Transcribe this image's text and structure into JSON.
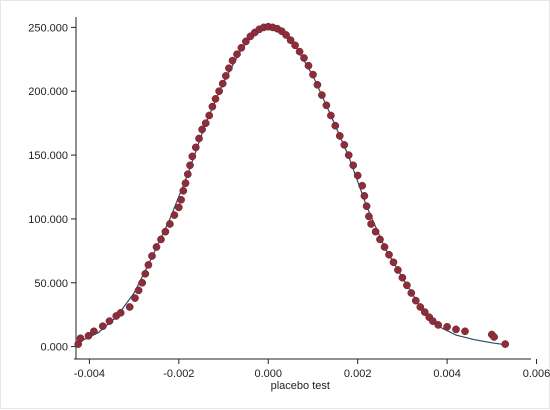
{
  "chart_data": {
    "type": "scatter",
    "title": "",
    "xlabel": "placebo test",
    "ylabel": "",
    "xlim": [
      -0.0043,
      0.0061
    ],
    "ylim": [
      -5000,
      255000
    ],
    "xticks": [
      -0.004,
      -0.002,
      0.0,
      0.002,
      0.004,
      0.006
    ],
    "xtick_labels": [
      "-0.004",
      "-0.002",
      "0.000",
      "0.002",
      "0.004",
      "0.006"
    ],
    "yticks": [
      0,
      50000,
      100000,
      150000,
      200000,
      250000
    ],
    "ytick_labels": [
      "0.000",
      "50.000",
      "100.000",
      "150.000",
      "200.000",
      "250.000"
    ],
    "grid": false,
    "legend": "none",
    "series": [
      {
        "kind": "points",
        "color": "#8b2e3a",
        "points": [
          [
            -0.00425,
            2000
          ],
          [
            -0.0042,
            6500
          ],
          [
            -0.00402,
            8500
          ],
          [
            -0.0039,
            12000
          ],
          [
            -0.0037,
            16000
          ],
          [
            -0.00355,
            20000
          ],
          [
            -0.0034,
            24000
          ],
          [
            -0.0033,
            26500
          ],
          [
            -0.0031,
            31000
          ],
          [
            -0.00298,
            38000
          ],
          [
            -0.0029,
            44000
          ],
          [
            -0.00282,
            50000
          ],
          [
            -0.00275,
            57000
          ],
          [
            -0.00268,
            64000
          ],
          [
            -0.0026,
            71000
          ],
          [
            -0.0025,
            78000
          ],
          [
            -0.0024,
            84000
          ],
          [
            -0.0023,
            90000
          ],
          [
            -0.0022,
            96000
          ],
          [
            -0.0021,
            103000
          ],
          [
            -0.002,
            109000
          ],
          [
            -0.00195,
            115000
          ],
          [
            -0.0019,
            122000
          ],
          [
            -0.00185,
            128000
          ],
          [
            -0.0018,
            135000
          ],
          [
            -0.00175,
            142000
          ],
          [
            -0.0017,
            149000
          ],
          [
            -0.00162,
            156000
          ],
          [
            -0.00155,
            163000
          ],
          [
            -0.00148,
            170000
          ],
          [
            -0.0014,
            175000
          ],
          [
            -0.00132,
            181000
          ],
          [
            -0.00125,
            188000
          ],
          [
            -0.00118,
            194000
          ],
          [
            -0.0011,
            200000
          ],
          [
            -0.00102,
            206000
          ],
          [
            -0.00095,
            212000
          ],
          [
            -0.00088,
            218000
          ],
          [
            -0.0008,
            224000
          ],
          [
            -0.0007,
            229000
          ],
          [
            -0.0006,
            234000
          ],
          [
            -0.0005,
            239000
          ],
          [
            -0.0004,
            243000
          ],
          [
            -0.0003,
            246000
          ],
          [
            -0.0002,
            248500
          ],
          [
            -0.0001,
            250000
          ],
          [
            0.0,
            250500
          ],
          [
            0.0001,
            250000
          ],
          [
            0.0002,
            249000
          ],
          [
            0.0003,
            247000
          ],
          [
            0.0004,
            244000
          ],
          [
            0.0005,
            240000
          ],
          [
            0.0006,
            236000
          ],
          [
            0.0007,
            231000
          ],
          [
            0.0008,
            226000
          ],
          [
            0.0009,
            220000
          ],
          [
            0.001,
            213000
          ],
          [
            0.0011,
            205000
          ],
          [
            0.0012,
            197000
          ],
          [
            0.0013,
            189000
          ],
          [
            0.0014,
            181000
          ],
          [
            0.0015,
            173000
          ],
          [
            0.0016,
            165000
          ],
          [
            0.0017,
            158000
          ],
          [
            0.0018,
            150000
          ],
          [
            0.0019,
            142000
          ],
          [
            0.002,
            134000
          ],
          [
            0.0021,
            126000
          ],
          [
            0.00215,
            118000
          ],
          [
            0.0022,
            110000
          ],
          [
            0.00225,
            102000
          ],
          [
            0.0023,
            96000
          ],
          [
            0.0024,
            90000
          ],
          [
            0.0025,
            84000
          ],
          [
            0.0026,
            78000
          ],
          [
            0.0027,
            72000
          ],
          [
            0.0028,
            66000
          ],
          [
            0.0029,
            60000
          ],
          [
            0.003,
            54000
          ],
          [
            0.0031,
            48000
          ],
          [
            0.0032,
            42000
          ],
          [
            0.0033,
            36000
          ],
          [
            0.0034,
            31000
          ],
          [
            0.0035,
            27000
          ],
          [
            0.0036,
            23000
          ],
          [
            0.00368,
            20000
          ],
          [
            0.0038,
            17000
          ],
          [
            0.004,
            15500
          ],
          [
            0.0042,
            13500
          ],
          [
            0.0044,
            12000
          ],
          [
            0.005,
            9500
          ],
          [
            0.00505,
            7500
          ],
          [
            0.0053,
            2000
          ]
        ]
      },
      {
        "kind": "line",
        "color": "#2c4a6e",
        "points": [
          [
            -0.0043,
            2500
          ],
          [
            -0.0038,
            11000
          ],
          [
            -0.0034,
            23000
          ],
          [
            -0.003,
            42000
          ],
          [
            -0.0026,
            70000
          ],
          [
            -0.0022,
            100000
          ],
          [
            -0.0018,
            135000
          ],
          [
            -0.0014,
            175000
          ],
          [
            -0.001,
            207000
          ],
          [
            -0.0006,
            233000
          ],
          [
            -0.0003,
            246000
          ],
          [
            0.0,
            250000
          ],
          [
            0.0003,
            246000
          ],
          [
            0.0006,
            236000
          ],
          [
            0.001,
            212000
          ],
          [
            0.0014,
            181000
          ],
          [
            0.0018,
            149000
          ],
          [
            0.0022,
            110000
          ],
          [
            0.0026,
            78000
          ],
          [
            0.003,
            54000
          ],
          [
            0.0034,
            31000
          ],
          [
            0.0038,
            16000
          ],
          [
            0.0042,
            9000
          ],
          [
            0.0046,
            5500
          ],
          [
            0.005,
            3000
          ],
          [
            0.0053,
            1500
          ]
        ]
      }
    ]
  }
}
